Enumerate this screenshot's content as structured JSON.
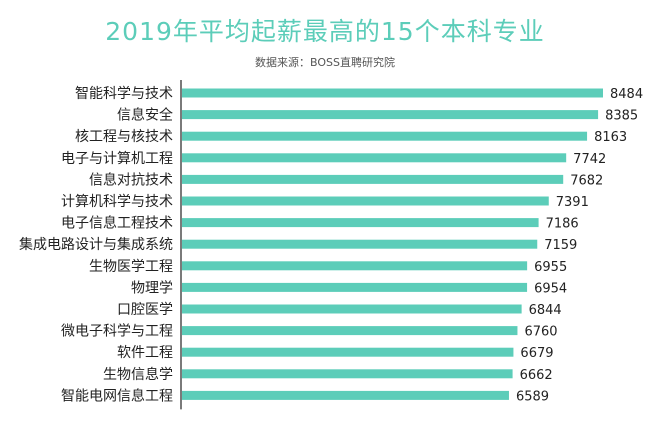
{
  "title": "2019年平均起薪最高的15个本科专业",
  "source": "数据来源：BOSS直聘研究院",
  "colors": {
    "bar": "#5ccdb9",
    "title": "#5ccdb9",
    "axis": "#222222",
    "label": "#222222"
  },
  "chart_data": {
    "type": "bar",
    "orientation": "horizontal",
    "title": "2019年平均起薪最高的15个本科专业",
    "xlabel": "",
    "ylabel": "",
    "xlim": [
      0,
      8484
    ],
    "grid": false,
    "categories": [
      "智能科学与技术",
      "信息安全",
      "核工程与核技术",
      "电子与计算机工程",
      "信息对抗技术",
      "计算机科学与技术",
      "电子信息工程技术",
      "集成电路设计与集成系统",
      "生物医学工程",
      "物理学",
      "口腔医学",
      "微电子科学与工程",
      "软件工程",
      "生物信息学",
      "智能电网信息工程"
    ],
    "values": [
      8484,
      8385,
      8163,
      7742,
      7682,
      7391,
      7186,
      7159,
      6955,
      6954,
      6844,
      6760,
      6679,
      6662,
      6589
    ]
  }
}
